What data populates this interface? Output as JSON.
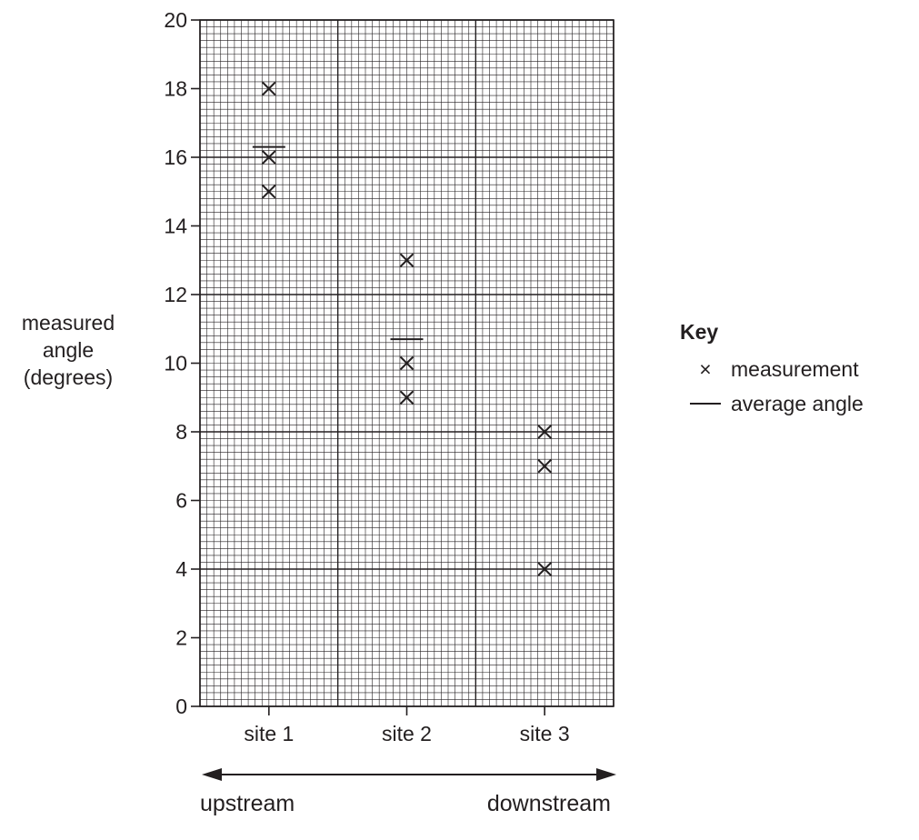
{
  "chart_data": {
    "type": "scatter",
    "ylabel_lines": [
      "measured",
      "angle",
      "(degrees)"
    ],
    "ylim": [
      0,
      20
    ],
    "yticks": [
      0,
      2,
      4,
      6,
      8,
      10,
      12,
      14,
      16,
      18,
      20
    ],
    "categories": [
      "site 1",
      "site 2",
      "site 3"
    ],
    "grid": true,
    "series": [
      {
        "name": "measurement",
        "marker": "x",
        "points": [
          {
            "x": "site 1",
            "y": 18
          },
          {
            "x": "site 1",
            "y": 16
          },
          {
            "x": "site 1",
            "y": 15
          },
          {
            "x": "site 2",
            "y": 13
          },
          {
            "x": "site 2",
            "y": 10
          },
          {
            "x": "site 2",
            "y": 9
          },
          {
            "x": "site 3",
            "y": 8
          },
          {
            "x": "site 3",
            "y": 7
          },
          {
            "x": "site 3",
            "y": 4
          }
        ]
      },
      {
        "name": "average angle",
        "marker": "line",
        "points": [
          {
            "x": "site 1",
            "y": 16.3
          },
          {
            "x": "site 2",
            "y": 10.7
          }
        ]
      }
    ],
    "legend": {
      "title": "Key",
      "position": "right",
      "items": [
        {
          "symbol": "×",
          "label": "measurement"
        },
        {
          "symbol": "line",
          "label": "average angle"
        }
      ]
    },
    "arrow": {
      "left_label": "upstream",
      "right_label": "downstream"
    },
    "colors": {
      "ink": "#231f20",
      "grid": "#231f20"
    }
  }
}
